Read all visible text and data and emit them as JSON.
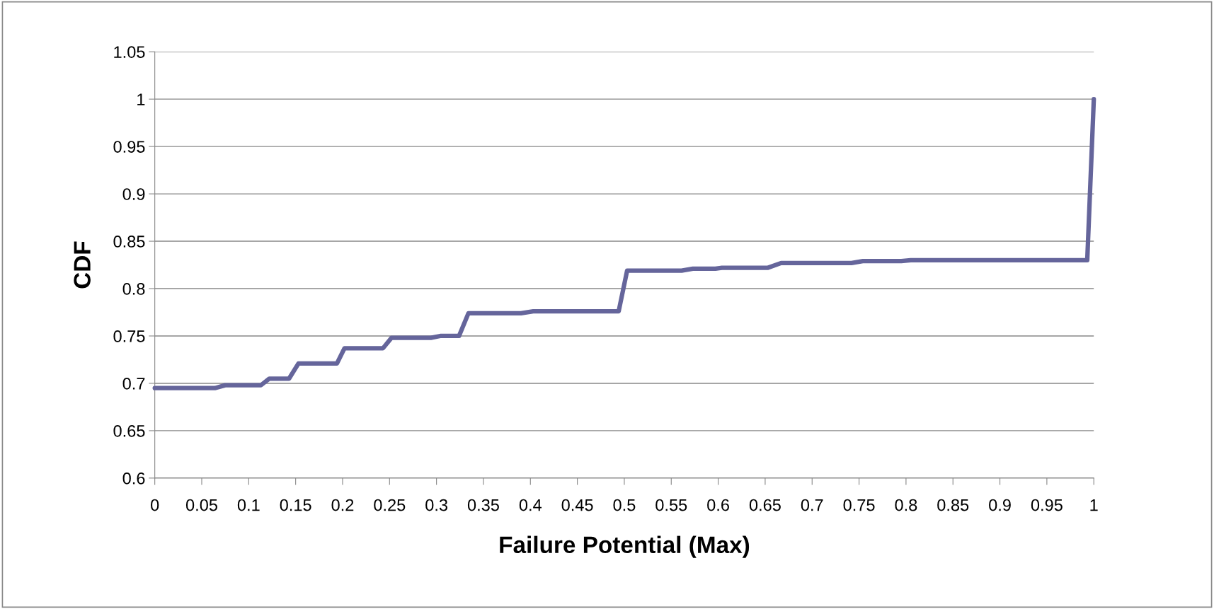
{
  "chart_data": {
    "type": "line",
    "xlabel": "Failure Potential (Max)",
    "ylabel": "CDF",
    "xlim": [
      0,
      1
    ],
    "xticks": [
      0,
      0.05,
      0.1,
      0.15,
      0.2,
      0.25,
      0.3,
      0.35,
      0.4,
      0.45,
      0.5,
      0.55,
      0.6,
      0.65,
      0.7,
      0.75,
      0.8,
      0.85,
      0.9,
      0.95,
      1
    ],
    "ylim": [
      0.6,
      1.05
    ],
    "yticks": [
      0.6,
      0.65,
      0.7,
      0.75,
      0.8,
      0.85,
      0.9,
      0.95,
      1,
      1.05
    ],
    "grid": "y",
    "marker": "none",
    "line_style": "solid",
    "series": [
      {
        "color": "#65659b",
        "x": [
          0,
          0.064,
          0.075,
          0.113,
          0.122,
          0.143,
          0.153,
          0.194,
          0.202,
          0.243,
          0.252,
          0.294,
          0.304,
          0.324,
          0.334,
          0.39,
          0.403,
          0.494,
          0.503,
          0.561,
          0.573,
          0.597,
          0.604,
          0.653,
          0.667,
          0.742,
          0.754,
          0.795,
          0.805,
          0.993,
          1.0
        ],
        "values": [
          0.695,
          0.695,
          0.698,
          0.698,
          0.705,
          0.705,
          0.721,
          0.721,
          0.737,
          0.737,
          0.748,
          0.748,
          0.75,
          0.75,
          0.774,
          0.774,
          0.776,
          0.776,
          0.819,
          0.819,
          0.821,
          0.821,
          0.822,
          0.822,
          0.827,
          0.827,
          0.829,
          0.829,
          0.83,
          0.83,
          1.0
        ]
      }
    ]
  }
}
